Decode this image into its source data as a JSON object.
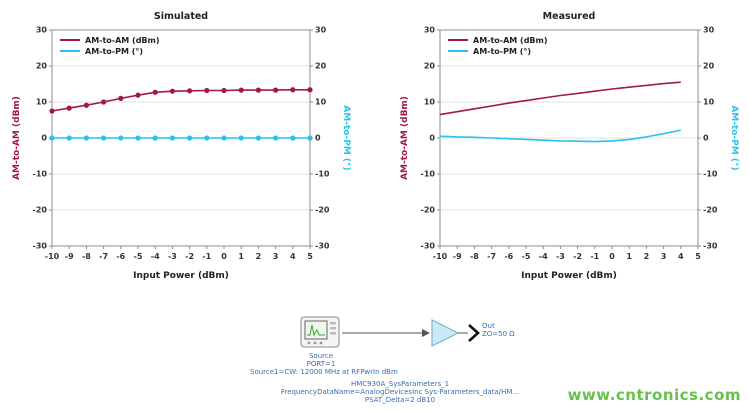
{
  "page": {
    "watermark": "www.cntronics.com"
  },
  "chart_data": [
    {
      "type": "line",
      "title": "Simulated",
      "xlabel": "Input Power (dBm)",
      "ylabel_left": "AM-to-AM (dBm)",
      "ylabel_right": "AM-to-PM (°)",
      "xlim": [
        -10,
        5
      ],
      "ylim": [
        -30,
        30
      ],
      "xticks": [
        -10,
        -9,
        -8,
        -7,
        -6,
        -5,
        -4,
        -3,
        -2,
        -1,
        0,
        1,
        2,
        3,
        4,
        5
      ],
      "yticks": [
        -30,
        -20,
        -10,
        0,
        10,
        20,
        30
      ],
      "grid": "horizontal",
      "legend_position": "top-left",
      "legend": [
        "AM-to-AM (dBm)",
        "AM-to-PM (°)"
      ],
      "series": [
        {
          "name": "AM-to-AM (dBm)",
          "color": "#a01a41",
          "markers": true,
          "x": [
            -10,
            -9,
            -8,
            -7,
            -6,
            -5,
            -4,
            -3,
            -2,
            -1,
            0,
            1,
            2,
            3,
            4,
            5
          ],
          "y": [
            7.5,
            8.3,
            9.1,
            10.0,
            11.0,
            11.9,
            12.7,
            13.0,
            13.1,
            13.2,
            13.2,
            13.3,
            13.3,
            13.3,
            13.4,
            13.4
          ]
        },
        {
          "name": "AM-to-PM (°)",
          "color": "#29c2ee",
          "markers": true,
          "x": [
            -10,
            -9,
            -8,
            -7,
            -6,
            -5,
            -4,
            -3,
            -2,
            -1,
            0,
            1,
            2,
            3,
            4,
            5
          ],
          "y": [
            0,
            0,
            0,
            0,
            0,
            0,
            0,
            0,
            0,
            0,
            0,
            0,
            0,
            0,
            0,
            0
          ]
        }
      ]
    },
    {
      "type": "line",
      "title": "Measured",
      "xlabel": "Input Power (dBm)",
      "ylabel_left": "AM-to-AM (dBm)",
      "ylabel_right": "AM-to-PM (°)",
      "xlim": [
        -10,
        5
      ],
      "ylim": [
        -30,
        30
      ],
      "xticks": [
        -10,
        -9,
        -8,
        -7,
        -6,
        -5,
        -4,
        -3,
        -2,
        -1,
        0,
        1,
        2,
        3,
        4,
        5
      ],
      "yticks": [
        -30,
        -20,
        -10,
        0,
        10,
        20,
        30
      ],
      "grid": "horizontal",
      "legend_position": "top-left",
      "legend": [
        "AM-to-AM (dBm)",
        "AM-to-PM (°)"
      ],
      "series": [
        {
          "name": "AM-to-AM (dBm)",
          "color": "#a01a41",
          "markers": false,
          "x": [
            -10,
            -9,
            -8,
            -7,
            -6,
            -5,
            -4,
            -3,
            -2,
            -1,
            0,
            1,
            2,
            3,
            4
          ],
          "y": [
            6.5,
            7.3,
            8.1,
            8.9,
            9.7,
            10.4,
            11.1,
            11.8,
            12.4,
            13.0,
            13.6,
            14.1,
            14.6,
            15.1,
            15.5
          ]
        },
        {
          "name": "AM-to-PM (°)",
          "color": "#29c2ee",
          "markers": false,
          "x": [
            -10,
            -9,
            -8,
            -7,
            -6,
            -5,
            -4,
            -3,
            -2,
            -1,
            0,
            1,
            2,
            3,
            4
          ],
          "y": [
            0.5,
            0.3,
            0.2,
            0.0,
            -0.2,
            -0.4,
            -0.6,
            -0.8,
            -0.9,
            -1.0,
            -0.8,
            -0.4,
            0.3,
            1.2,
            2.2
          ]
        }
      ]
    }
  ],
  "schematic": {
    "source_label": "Source",
    "port_label": "PORT=1",
    "source_line": "Source1=CW: 12000 MHz at RFPwrIn dBm",
    "amp_lines": [
      "HMC930A_SysParameters_1",
      "FrequencyDataName=AnalogDevicesInc Sys-Parameters_data/HM...",
      "PSAT_Delta=2 dB10"
    ],
    "out_label": "Out",
    "out_impedance": "ZO=50 Ω"
  },
  "colors": {
    "am_am": "#a01a41",
    "am_pm": "#29c2ee",
    "schematic_text": "#3a6db2",
    "watermark": "#67c24c"
  }
}
